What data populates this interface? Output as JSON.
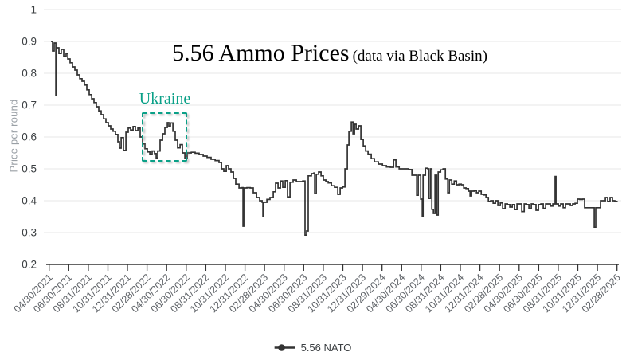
{
  "title": {
    "main": "5.56 Ammo Prices",
    "sub": "(data via Black Basin)"
  },
  "y_axis": {
    "label": "Price per round",
    "tick_labels": [
      "0.2",
      "0.3",
      "0.4",
      "0.5",
      "0.6",
      "0.7",
      "0.8",
      "0.9",
      "1"
    ],
    "tick_values": [
      0.2,
      0.3,
      0.4,
      0.5,
      0.6,
      0.7,
      0.8,
      0.9,
      1.0
    ]
  },
  "x_axis": {
    "tick_labels": [
      "04/30/2021",
      "06/30/2021",
      "08/31/2021",
      "10/31/2021",
      "12/31/2021",
      "02/28/2022",
      "04/30/2022",
      "06/30/2022",
      "08/31/2022",
      "10/31/2022",
      "12/31/2022",
      "02/28/2023",
      "04/30/2023",
      "06/30/2023",
      "08/31/2023",
      "10/31/2023",
      "12/31/2023",
      "02/29/2024",
      "04/30/2024",
      "06/30/2024",
      "08/31/2024",
      "10/31/2024",
      "12/31/2024",
      "02/28/2025",
      "04/30/2025",
      "06/30/2025",
      "08/31/2025",
      "10/31/2025",
      "12/31/2025",
      "02/28/2026"
    ],
    "tick_months": [
      0,
      2,
      4,
      6,
      8,
      10,
      12,
      14,
      16,
      18,
      20,
      22,
      24,
      26,
      28,
      30,
      32,
      34,
      36,
      38,
      40,
      42,
      44,
      46,
      48,
      50,
      52,
      54,
      56,
      58
    ]
  },
  "legend": {
    "label": "5.56 NATO"
  },
  "annotation": {
    "label": "Ukraine",
    "month_from": 9.45,
    "month_to": 14.2,
    "value_from": 0.52,
    "value_to": 0.6775,
    "color": "#0aa087"
  },
  "colors": {
    "line": "#333333",
    "grid": "#e7e7e7",
    "axis": "#333333",
    "x_tick_label": "#5f6368",
    "y_tick_label": "#3c4043",
    "axis_title": "#9aa0a6",
    "legend_text": "#3c4043",
    "annotation": "#0aa087",
    "background": "#ffffff"
  },
  "chart_data": {
    "type": "line",
    "title": "5.56 Ammo Prices (data via Black Basin)",
    "xlabel": "",
    "ylabel": "Price per round",
    "ylim": [
      0.2,
      1.0
    ],
    "x_unit": "months since 04/30/2021",
    "xlim_months": [
      0,
      58
    ],
    "grid": "horizontal",
    "legend_position": "bottom-center",
    "interpolation": "step-after",
    "annotations": [
      {
        "label": "Ukraine",
        "box_months": [
          9.45,
          14.2
        ],
        "box_values": [
          0.52,
          0.6775
        ]
      }
    ],
    "series": [
      {
        "name": "5.56 NATO",
        "points": [
          [
            0.19,
            0.9
          ],
          [
            0.35,
            0.87
          ],
          [
            0.51,
            0.895
          ],
          [
            0.68,
            0.73
          ],
          [
            0.76,
            0.88
          ],
          [
            1.0,
            0.862
          ],
          [
            1.24,
            0.875
          ],
          [
            1.49,
            0.853
          ],
          [
            1.73,
            0.862
          ],
          [
            1.9,
            0.845
          ],
          [
            2.14,
            0.833
          ],
          [
            2.38,
            0.82
          ],
          [
            2.63,
            0.81
          ],
          [
            2.87,
            0.795
          ],
          [
            3.12,
            0.783
          ],
          [
            3.36,
            0.775
          ],
          [
            3.6,
            0.763
          ],
          [
            3.85,
            0.748
          ],
          [
            4.09,
            0.733
          ],
          [
            4.34,
            0.72
          ],
          [
            4.58,
            0.708
          ],
          [
            4.82,
            0.695
          ],
          [
            5.07,
            0.682
          ],
          [
            5.31,
            0.67
          ],
          [
            5.56,
            0.657
          ],
          [
            5.8,
            0.645
          ],
          [
            6.04,
            0.635
          ],
          [
            6.29,
            0.625
          ],
          [
            6.53,
            0.618
          ],
          [
            6.78,
            0.608
          ],
          [
            7.02,
            0.585
          ],
          [
            7.18,
            0.565
          ],
          [
            7.35,
            0.598
          ],
          [
            7.59,
            0.558
          ],
          [
            7.84,
            0.615
          ],
          [
            8.08,
            0.628
          ],
          [
            8.32,
            0.622
          ],
          [
            8.57,
            0.633
          ],
          [
            8.81,
            0.62
          ],
          [
            9.06,
            0.628
          ],
          [
            9.3,
            0.6
          ],
          [
            9.54,
            0.578
          ],
          [
            9.79,
            0.563
          ],
          [
            10.03,
            0.553
          ],
          [
            10.28,
            0.545
          ],
          [
            10.52,
            0.556
          ],
          [
            10.76,
            0.548
          ],
          [
            10.93,
            0.534
          ],
          [
            11.09,
            0.556
          ],
          [
            11.33,
            0.59
          ],
          [
            11.58,
            0.61
          ],
          [
            11.82,
            0.63
          ],
          [
            12.07,
            0.645
          ],
          [
            12.23,
            0.634
          ],
          [
            12.39,
            0.644
          ],
          [
            12.64,
            0.618
          ],
          [
            12.88,
            0.59
          ],
          [
            13.12,
            0.566
          ],
          [
            13.37,
            0.576
          ],
          [
            13.61,
            0.55
          ],
          [
            13.86,
            0.532
          ],
          [
            14.1,
            0.55
          ],
          [
            14.51,
            0.552
          ],
          [
            14.91,
            0.549
          ],
          [
            15.32,
            0.545
          ],
          [
            15.73,
            0.54
          ],
          [
            16.13,
            0.536
          ],
          [
            16.54,
            0.53
          ],
          [
            16.95,
            0.526
          ],
          [
            17.35,
            0.52
          ],
          [
            17.6,
            0.5
          ],
          [
            17.84,
            0.492
          ],
          [
            18.09,
            0.51
          ],
          [
            18.33,
            0.5
          ],
          [
            18.57,
            0.49
          ],
          [
            18.82,
            0.47
          ],
          [
            19.06,
            0.452
          ],
          [
            19.39,
            0.44
          ],
          [
            19.71,
            0.441
          ],
          [
            19.8,
            0.32
          ],
          [
            19.88,
            0.44
          ],
          [
            20.2,
            0.441
          ],
          [
            20.53,
            0.44
          ],
          [
            20.85,
            0.425
          ],
          [
            21.18,
            0.41
          ],
          [
            21.5,
            0.4
          ],
          [
            21.75,
            0.395
          ],
          [
            21.83,
            0.35
          ],
          [
            21.91,
            0.395
          ],
          [
            22.24,
            0.404
          ],
          [
            22.56,
            0.41
          ],
          [
            22.89,
            0.428
          ],
          [
            23.13,
            0.455
          ],
          [
            23.38,
            0.44
          ],
          [
            23.62,
            0.462
          ],
          [
            23.86,
            0.442
          ],
          [
            24.11,
            0.463
          ],
          [
            24.35,
            0.412
          ],
          [
            24.6,
            0.458
          ],
          [
            24.92,
            0.465
          ],
          [
            25.25,
            0.46
          ],
          [
            25.57,
            0.46
          ],
          [
            25.9,
            0.462
          ],
          [
            26.14,
            0.292
          ],
          [
            26.3,
            0.305
          ],
          [
            26.46,
            0.478
          ],
          [
            26.79,
            0.485
          ],
          [
            27.04,
            0.487
          ],
          [
            27.12,
            0.422
          ],
          [
            27.28,
            0.483
          ],
          [
            27.52,
            0.49
          ],
          [
            27.77,
            0.478
          ],
          [
            28.01,
            0.465
          ],
          [
            28.26,
            0.46
          ],
          [
            28.5,
            0.456
          ],
          [
            28.83,
            0.447
          ],
          [
            29.15,
            0.442
          ],
          [
            29.48,
            0.42
          ],
          [
            29.72,
            0.44
          ],
          [
            29.97,
            0.443
          ],
          [
            30.21,
            0.5
          ],
          [
            30.46,
            0.575
          ],
          [
            30.62,
            0.618
          ],
          [
            30.86,
            0.647
          ],
          [
            31.03,
            0.61
          ],
          [
            31.19,
            0.64
          ],
          [
            31.35,
            0.625
          ],
          [
            31.6,
            0.635
          ],
          [
            31.84,
            0.592
          ],
          [
            32.08,
            0.572
          ],
          [
            32.33,
            0.556
          ],
          [
            32.57,
            0.546
          ],
          [
            32.9,
            0.532
          ],
          [
            33.22,
            0.522
          ],
          [
            33.63,
            0.515
          ],
          [
            34.04,
            0.51
          ],
          [
            34.45,
            0.506
          ],
          [
            34.85,
            0.505
          ],
          [
            35.18,
            0.528
          ],
          [
            35.42,
            0.506
          ],
          [
            35.75,
            0.5
          ],
          [
            36.07,
            0.5
          ],
          [
            36.4,
            0.5
          ],
          [
            36.73,
            0.498
          ],
          [
            37.05,
            0.48
          ],
          [
            37.38,
            0.48
          ],
          [
            37.54,
            0.417
          ],
          [
            37.7,
            0.48
          ],
          [
            37.95,
            0.405
          ],
          [
            38.11,
            0.35
          ],
          [
            38.19,
            0.48
          ],
          [
            38.44,
            0.502
          ],
          [
            38.68,
            0.5
          ],
          [
            38.76,
            0.407
          ],
          [
            38.93,
            0.5
          ],
          [
            39.09,
            0.373
          ],
          [
            39.25,
            0.36
          ],
          [
            39.41,
            0.48
          ],
          [
            39.58,
            0.355
          ],
          [
            39.74,
            0.49
          ],
          [
            39.98,
            0.497
          ],
          [
            40.23,
            0.5
          ],
          [
            40.47,
            0.468
          ],
          [
            40.71,
            0.425
          ],
          [
            40.88,
            0.465
          ],
          [
            41.12,
            0.452
          ],
          [
            41.37,
            0.462
          ],
          [
            41.61,
            0.45
          ],
          [
            41.85,
            0.452
          ],
          [
            42.1,
            0.45
          ],
          [
            42.34,
            0.44
          ],
          [
            42.58,
            0.438
          ],
          [
            42.83,
            0.43
          ],
          [
            42.99,
            0.415
          ],
          [
            43.15,
            0.43
          ],
          [
            43.4,
            0.432
          ],
          [
            43.64,
            0.425
          ],
          [
            43.88,
            0.43
          ],
          [
            44.13,
            0.42
          ],
          [
            44.37,
            0.418
          ],
          [
            44.62,
            0.41
          ],
          [
            44.86,
            0.398
          ],
          [
            45.1,
            0.4
          ],
          [
            45.35,
            0.392
          ],
          [
            45.59,
            0.4
          ],
          [
            45.83,
            0.385
          ],
          [
            46.08,
            0.393
          ],
          [
            46.32,
            0.375
          ],
          [
            46.57,
            0.39
          ],
          [
            46.81,
            0.388
          ],
          [
            47.05,
            0.38
          ],
          [
            47.3,
            0.388
          ],
          [
            47.54,
            0.372
          ],
          [
            47.78,
            0.39
          ],
          [
            48.03,
            0.39
          ],
          [
            48.27,
            0.366
          ],
          [
            48.52,
            0.39
          ],
          [
            48.76,
            0.388
          ],
          [
            49.0,
            0.375
          ],
          [
            49.25,
            0.39
          ],
          [
            49.49,
            0.388
          ],
          [
            49.73,
            0.37
          ],
          [
            49.98,
            0.388
          ],
          [
            50.22,
            0.39
          ],
          [
            50.47,
            0.376
          ],
          [
            50.71,
            0.39
          ],
          [
            50.95,
            0.39
          ],
          [
            51.2,
            0.383
          ],
          [
            51.44,
            0.39
          ],
          [
            51.68,
            0.476
          ],
          [
            51.77,
            0.39
          ],
          [
            52.01,
            0.383
          ],
          [
            52.25,
            0.39
          ],
          [
            52.5,
            0.378
          ],
          [
            52.74,
            0.39
          ],
          [
            52.98,
            0.39
          ],
          [
            53.23,
            0.385
          ],
          [
            53.47,
            0.39
          ],
          [
            53.72,
            0.392
          ],
          [
            53.96,
            0.405
          ],
          [
            54.2,
            0.404
          ],
          [
            54.45,
            0.405
          ],
          [
            54.69,
            0.378
          ],
          [
            54.93,
            0.378
          ],
          [
            55.18,
            0.378
          ],
          [
            55.42,
            0.378
          ],
          [
            55.67,
            0.317
          ],
          [
            55.83,
            0.378
          ],
          [
            56.07,
            0.378
          ],
          [
            56.32,
            0.4
          ],
          [
            56.56,
            0.4
          ],
          [
            56.81,
            0.41
          ],
          [
            57.05,
            0.398
          ],
          [
            57.29,
            0.41
          ],
          [
            57.54,
            0.4
          ],
          [
            57.78,
            0.398
          ],
          [
            58.0,
            0.4
          ]
        ]
      }
    ]
  }
}
